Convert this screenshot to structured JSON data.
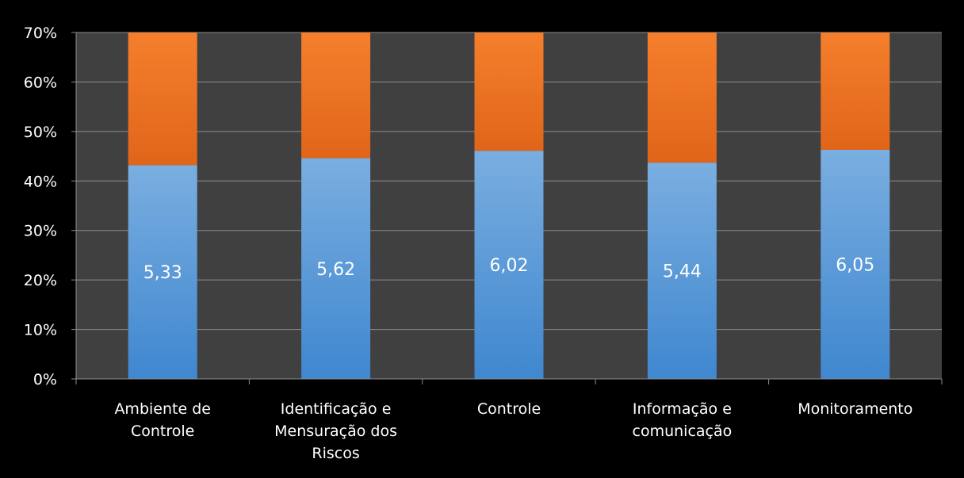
{
  "chart_data": {
    "type": "bar",
    "stacked": true,
    "categories": [
      [
        "Ambiente de",
        "Controle"
      ],
      [
        "Identificação e",
        "Mensuração dos",
        "Riscos"
      ],
      [
        "Controle"
      ],
      [
        "Informação e",
        "comunicação"
      ],
      [
        "Monitoramento"
      ]
    ],
    "series": [
      {
        "values": [
          43.2,
          44.6,
          46.1,
          43.7,
          46.3
        ],
        "labels": [
          "5,33",
          "5,62",
          "6,02",
          "5,44",
          "6,05"
        ]
      },
      {
        "values": [
          26.8,
          25.4,
          23.9,
          26.3,
          23.7
        ]
      }
    ],
    "y_ticks": [
      "0%",
      "10%",
      "20%",
      "30%",
      "40%",
      "50%",
      "60%",
      "70%"
    ],
    "ylim": [
      0,
      70
    ],
    "grid": true,
    "legend": "none",
    "colors": {
      "figure_background": "#000000",
      "plot_background": "#404040",
      "gridline": "#8c8c8c",
      "series1_top": "#7aaee0",
      "series1_bottom": "#3f87cf",
      "series2_top": "#f57f2c",
      "series2_bottom": "#e0651a",
      "text": "#ffffff"
    }
  }
}
